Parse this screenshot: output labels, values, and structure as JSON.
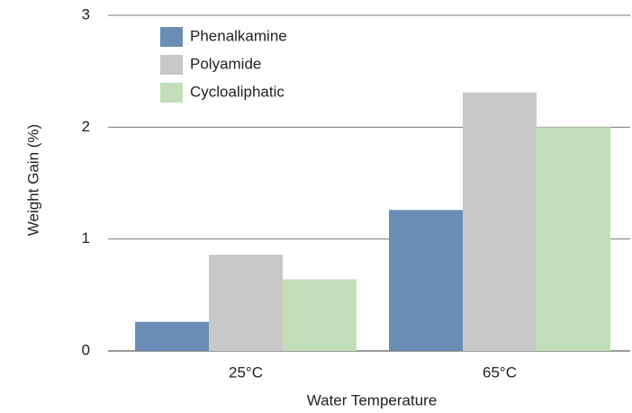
{
  "chart_data": {
    "type": "bar",
    "x_label": "Water Temperature",
    "y_label": "Weight Gain (%)",
    "categories": [
      "25°C",
      "65°C"
    ],
    "series": [
      {
        "name": "Phenalkamine",
        "color": "#6a8db5",
        "values": [
          0.26,
          1.26
        ]
      },
      {
        "name": "Polyamide",
        "color": "#c8c8c8",
        "values": [
          0.86,
          2.31
        ]
      },
      {
        "name": "Cycloaliphatic",
        "color": "#c2dfba",
        "values": [
          0.64,
          2.0
        ]
      }
    ],
    "ylim": [
      0,
      3
    ],
    "yticks": [
      0,
      1,
      2,
      3
    ],
    "grid": true,
    "legend": "top-left"
  }
}
